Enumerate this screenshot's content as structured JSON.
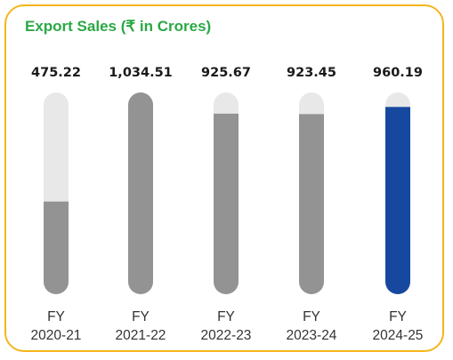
{
  "chart_data": {
    "type": "bar",
    "title": "Export Sales (₹ in Crores)",
    "categories": [
      "FY 2020-21",
      "FY 2021-22",
      "FY 2022-23",
      "FY 2023-24",
      "FY 2024-25"
    ],
    "category_lines": [
      [
        "FY",
        "2020-21"
      ],
      [
        "FY",
        "2021-22"
      ],
      [
        "FY",
        "2022-23"
      ],
      [
        "FY",
        "2023-24"
      ],
      [
        "FY",
        "2024-25"
      ]
    ],
    "values": [
      475.22,
      1034.51,
      925.67,
      923.45,
      960.19
    ],
    "value_labels": [
      "475.22",
      "1,034.51",
      "925.67",
      "923.45",
      "960.19"
    ],
    "ylim": [
      0,
      1034.51
    ],
    "grid": false,
    "colors": {
      "bar": "#939393",
      "highlight_bar": "#17489f",
      "track": "#e8e8e8",
      "title": "#2aa845",
      "border": "#f5b51b"
    },
    "highlight_index": 4
  }
}
